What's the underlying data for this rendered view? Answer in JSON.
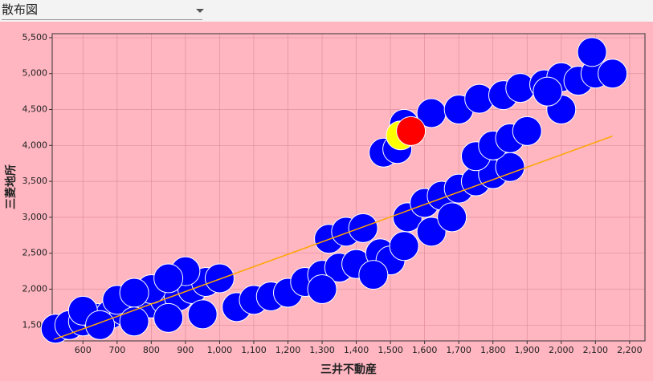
{
  "selector": {
    "value": "散布図"
  },
  "chart_data": {
    "type": "scatter",
    "x_label": "三井不動産",
    "y_label": "三菱地所",
    "xlim": [
      510,
      2245
    ],
    "ylim": [
      1280,
      5555
    ],
    "xticks": [
      {
        "value": 600,
        "label": "600"
      },
      {
        "value": 700,
        "label": "700"
      },
      {
        "value": 800,
        "label": "800"
      },
      {
        "value": 900,
        "label": "900"
      },
      {
        "value": 1000,
        "label": "1,000"
      },
      {
        "value": 1100,
        "label": "1,100"
      },
      {
        "value": 1200,
        "label": "1,200"
      },
      {
        "value": 1300,
        "label": "1,300"
      },
      {
        "value": 1400,
        "label": "1,400"
      },
      {
        "value": 1500,
        "label": "1,500"
      },
      {
        "value": 1600,
        "label": "1,600"
      },
      {
        "value": 1700,
        "label": "1,700"
      },
      {
        "value": 1800,
        "label": "1,800"
      },
      {
        "value": 1900,
        "label": "1,900"
      },
      {
        "value": 2000,
        "label": "2,000"
      },
      {
        "value": 2100,
        "label": "2,100"
      },
      {
        "value": 2200,
        "label": "2,200"
      }
    ],
    "yticks": [
      {
        "value": 1500,
        "label": "1,500"
      },
      {
        "value": 2000,
        "label": "2,000"
      },
      {
        "value": 2500,
        "label": "2,500"
      },
      {
        "value": 3000,
        "label": "3,000"
      },
      {
        "value": 3500,
        "label": "3,500"
      },
      {
        "value": 4000,
        "label": "4,000"
      },
      {
        "value": 4500,
        "label": "4,500"
      },
      {
        "value": 5000,
        "label": "5,000"
      },
      {
        "value": 5500,
        "label": "5,500"
      }
    ],
    "grid": true,
    "series": [
      {
        "color": "#0000ff",
        "x": [
          520,
          560,
          600,
          640,
          680,
          720,
          760,
          800,
          840,
          880,
          920,
          960,
          1000,
          700,
          800,
          900,
          850,
          750,
          600,
          650,
          750,
          850,
          950,
          1050,
          1100,
          1150,
          1200,
          1250,
          1300,
          1350,
          1400,
          1300,
          1320,
          1370,
          1420,
          1470,
          1500,
          1450,
          1540,
          1550,
          1600,
          1650,
          1700,
          1620,
          1680,
          1750,
          1800,
          1850,
          1750,
          1800,
          1850,
          1900,
          1480,
          1520,
          1540,
          1620,
          1700,
          1760,
          1830,
          1880,
          1950,
          2000,
          2050,
          2100,
          2150,
          2090,
          2000,
          1960
        ],
        "y": [
          1450,
          1500,
          1550,
          1600,
          1650,
          1700,
          1750,
          1800,
          1850,
          1900,
          2000,
          2100,
          2150,
          1850,
          2000,
          2250,
          2150,
          1950,
          1700,
          1500,
          1550,
          1600,
          1650,
          1750,
          1850,
          1900,
          1950,
          2100,
          2200,
          2300,
          2350,
          2000,
          2700,
          2800,
          2850,
          2500,
          2400,
          2200,
          2600,
          3000,
          3200,
          3300,
          3400,
          2800,
          3000,
          3500,
          3600,
          3700,
          3850,
          4000,
          4100,
          4200,
          3900,
          3950,
          4300,
          4450,
          4500,
          4650,
          4700,
          4800,
          4850,
          4950,
          4900,
          5000,
          5000,
          5300,
          4500,
          4750
        ]
      },
      {
        "color": "#ffff00",
        "x": [
          1530
        ],
        "y": [
          4140
        ]
      },
      {
        "color": "#ff0000",
        "x": [
          1560
        ],
        "y": [
          4200
        ]
      }
    ],
    "trendline": {
      "color": "#ffa500",
      "x": [
        515,
        2150
      ],
      "y": [
        1300,
        4130
      ]
    }
  }
}
